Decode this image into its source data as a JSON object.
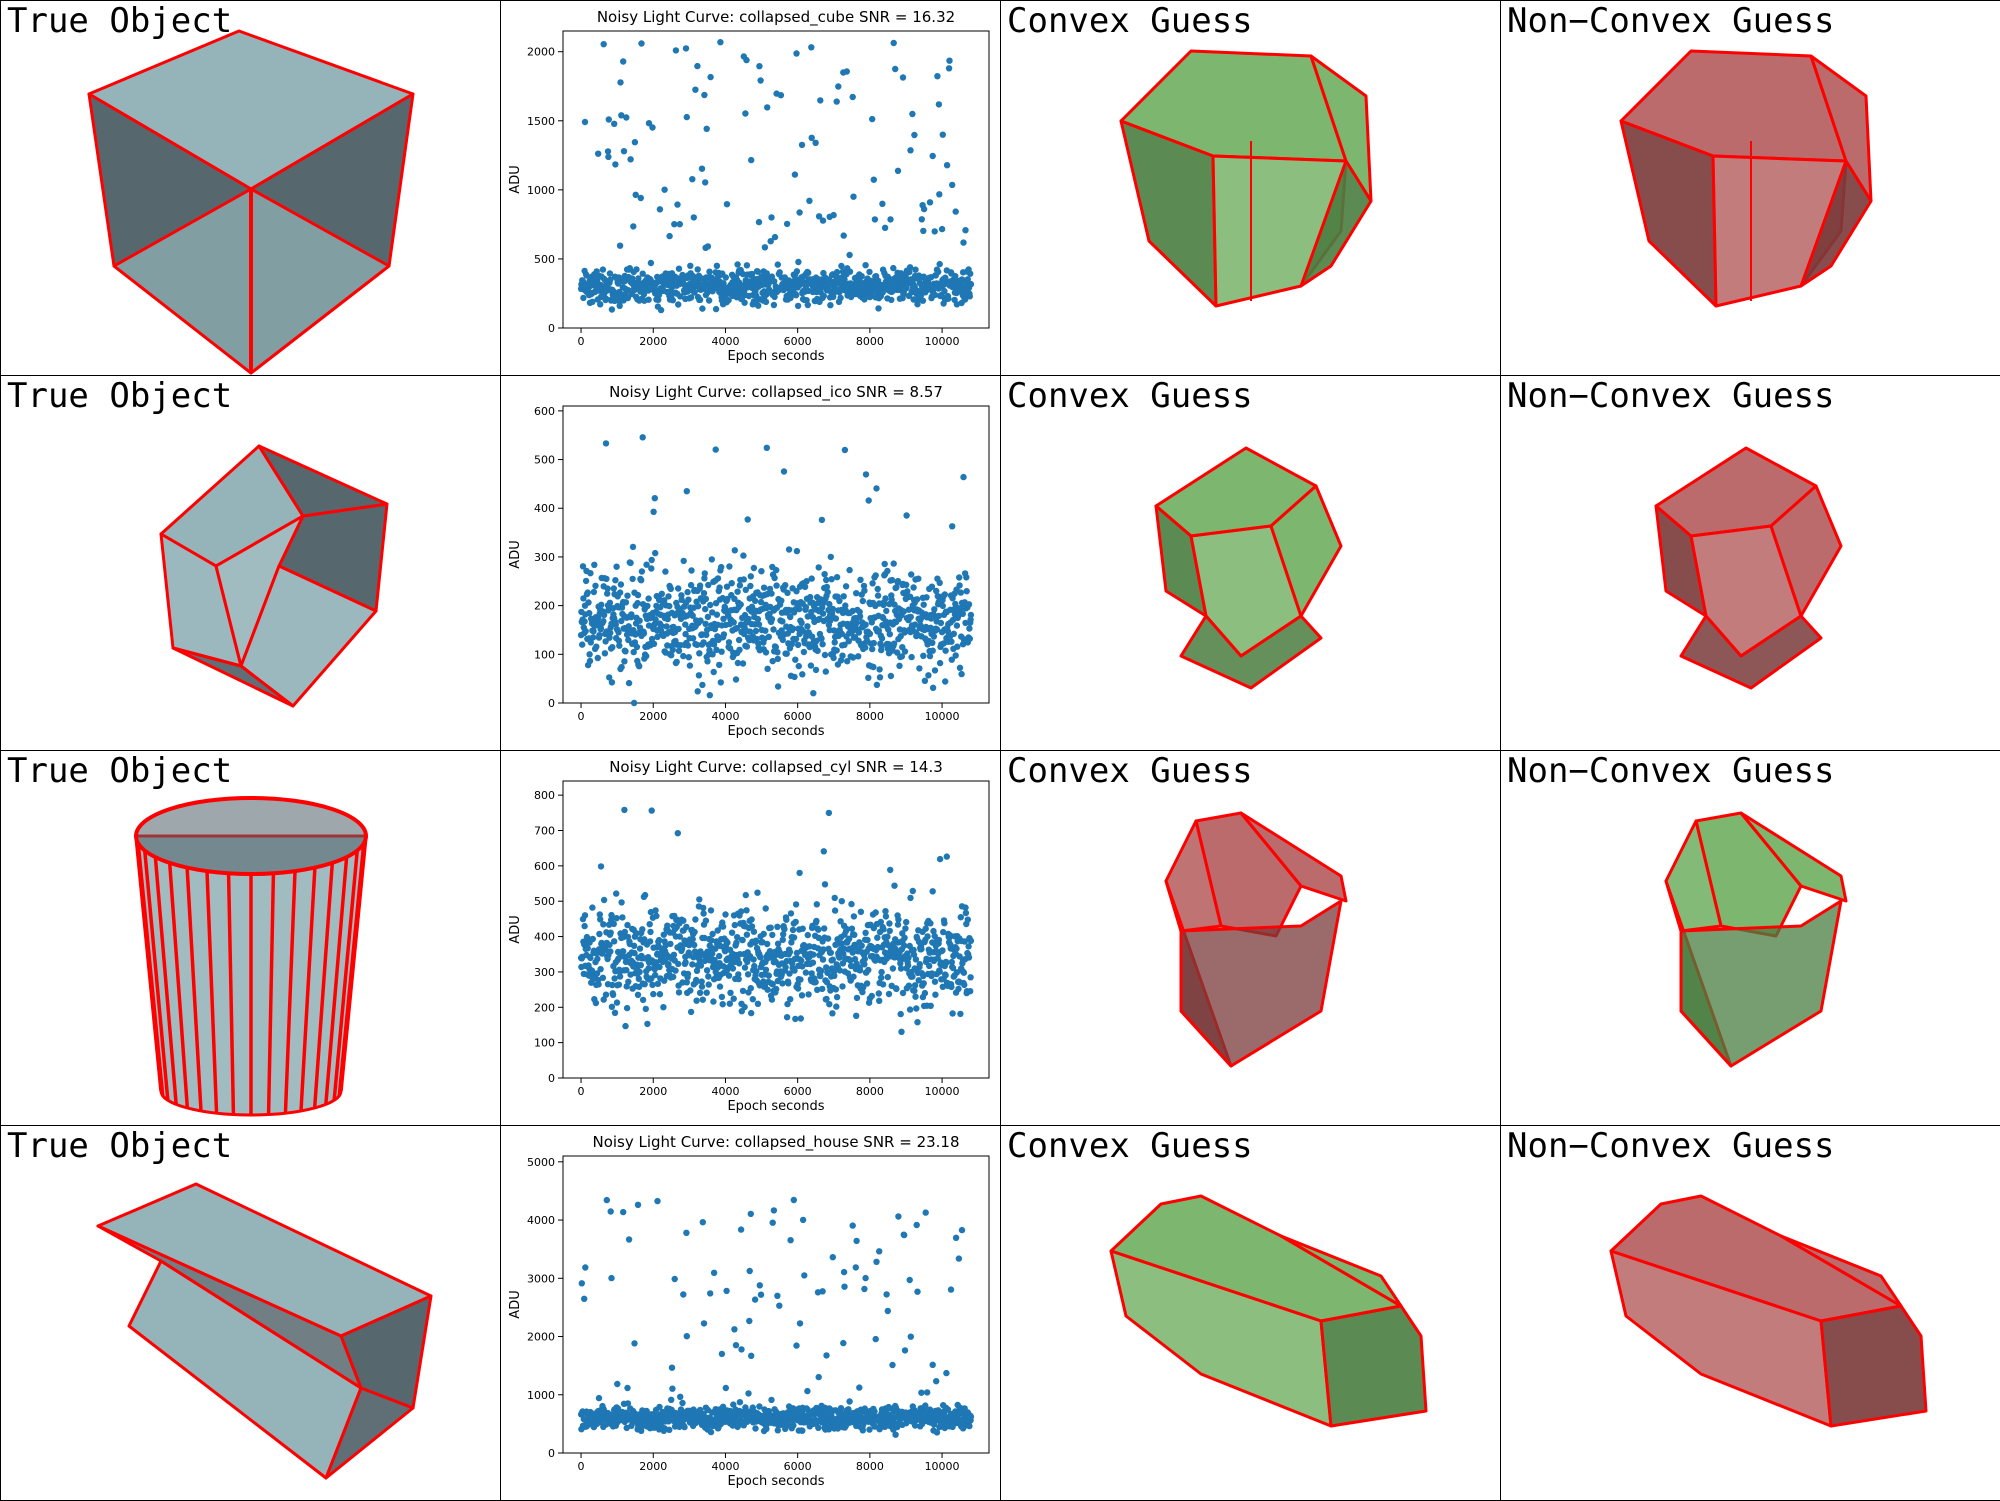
{
  "column_labels": {
    "true_object": "True Object",
    "convex_guess": "Convex Guess",
    "nonconvex_guess": "Non−Convex Guess"
  },
  "colors": {
    "edge": "#ff0000",
    "true_face": "#8fb0b6",
    "true_face_dark": "#4e5f66",
    "green": "#6fae5f",
    "green_dark": "#4a7d40",
    "red": "#b45b5b",
    "red_dark": "#7a3a3a",
    "scatter": "#1f77b4"
  },
  "rows": [
    {
      "object_shape": "cube",
      "convex_color": "green",
      "nonconvex_color": "red"
    },
    {
      "object_shape": "ico",
      "convex_color": "green",
      "nonconvex_color": "red"
    },
    {
      "object_shape": "cylinder",
      "convex_color": "red",
      "nonconvex_color": "green"
    },
    {
      "object_shape": "house",
      "convex_color": "green",
      "nonconvex_color": "red"
    }
  ],
  "chart_data": [
    {
      "type": "scatter",
      "title": "Noisy Light Curve: collapsed_cube SNR = 16.32",
      "xlabel": "Epoch seconds",
      "ylabel": "ADU",
      "xlim": [
        -500,
        11300
      ],
      "ylim": [
        0,
        2150
      ],
      "xticks": [
        0,
        2000,
        4000,
        6000,
        8000,
        10000
      ],
      "yticks": [
        0,
        500,
        1000,
        1500,
        2000
      ],
      "n_points": 1000,
      "x_range": [
        0,
        10800
      ],
      "baseline": 300,
      "spread": 110,
      "outlier_fraction": 0.12,
      "outlier_max": 2080
    },
    {
      "type": "scatter",
      "title": "Noisy Light Curve: collapsed_ico SNR = 8.57",
      "xlabel": "Epoch seconds",
      "ylabel": "ADU",
      "xlim": [
        -500,
        11300
      ],
      "ylim": [
        0,
        610
      ],
      "xticks": [
        0,
        2000,
        4000,
        6000,
        8000,
        10000
      ],
      "yticks": [
        0,
        100,
        200,
        300,
        400,
        500,
        600
      ],
      "n_points": 1000,
      "x_range": [
        0,
        10800
      ],
      "baseline": 170,
      "spread": 95,
      "outlier_fraction": 0.02,
      "outlier_max": 550
    },
    {
      "type": "scatter",
      "title": "Noisy Light Curve: collapsed_cyl SNR = 14.3",
      "xlabel": "Epoch seconds",
      "ylabel": "ADU",
      "xlim": [
        -500,
        11300
      ],
      "ylim": [
        0,
        840
      ],
      "xticks": [
        0,
        2000,
        4000,
        6000,
        8000,
        10000
      ],
      "yticks": [
        0,
        100,
        200,
        300,
        400,
        500,
        600,
        700,
        800
      ],
      "n_points": 1000,
      "x_range": [
        0,
        10800
      ],
      "baseline": 340,
      "spread": 125,
      "outlier_fraction": 0.02,
      "outlier_max": 800
    },
    {
      "type": "scatter",
      "title": "Noisy Light Curve: collapsed_house SNR = 23.18",
      "xlabel": "Epoch seconds",
      "ylabel": "ADU",
      "xlim": [
        -500,
        11300
      ],
      "ylim": [
        0,
        5100
      ],
      "xticks": [
        0,
        2000,
        4000,
        6000,
        8000,
        10000
      ],
      "yticks": [
        0,
        1000,
        2000,
        3000,
        4000,
        5000
      ],
      "n_points": 1000,
      "x_range": [
        0,
        10800
      ],
      "baseline": 600,
      "spread": 170,
      "outlier_fraction": 0.1,
      "outlier_max": 4600
    }
  ]
}
